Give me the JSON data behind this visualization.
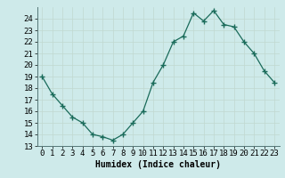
{
  "x": [
    0,
    1,
    2,
    3,
    4,
    5,
    6,
    7,
    8,
    9,
    10,
    11,
    12,
    13,
    14,
    15,
    16,
    17,
    18,
    19,
    20,
    21,
    22,
    23
  ],
  "y": [
    19.0,
    17.5,
    16.5,
    15.5,
    15.0,
    14.0,
    13.8,
    13.5,
    14.0,
    15.0,
    16.0,
    18.5,
    20.0,
    22.0,
    22.5,
    24.5,
    23.8,
    24.7,
    23.5,
    23.3,
    22.0,
    21.0,
    19.5,
    18.5
  ],
  "xlabel": "Humidex (Indice chaleur)",
  "ylim": [
    13,
    25
  ],
  "xlim": [
    -0.5,
    23.5
  ],
  "yticks": [
    13,
    14,
    15,
    16,
    17,
    18,
    19,
    20,
    21,
    22,
    23,
    24
  ],
  "xticks": [
    0,
    1,
    2,
    3,
    4,
    5,
    6,
    7,
    8,
    9,
    10,
    11,
    12,
    13,
    14,
    15,
    16,
    17,
    18,
    19,
    20,
    21,
    22,
    23
  ],
  "xtick_labels": [
    "0",
    "1",
    "2",
    "3",
    "4",
    "5",
    "6",
    "7",
    "8",
    "9",
    "10",
    "11",
    "12",
    "13",
    "14",
    "15",
    "16",
    "17",
    "18",
    "19",
    "20",
    "21",
    "22",
    "23"
  ],
  "line_color": "#1a6b5a",
  "marker": "+",
  "marker_size": 4,
  "bg_color": "#ceeaea",
  "grid_color": "#c0d8d0",
  "label_fontsize": 7,
  "tick_fontsize": 6.5
}
